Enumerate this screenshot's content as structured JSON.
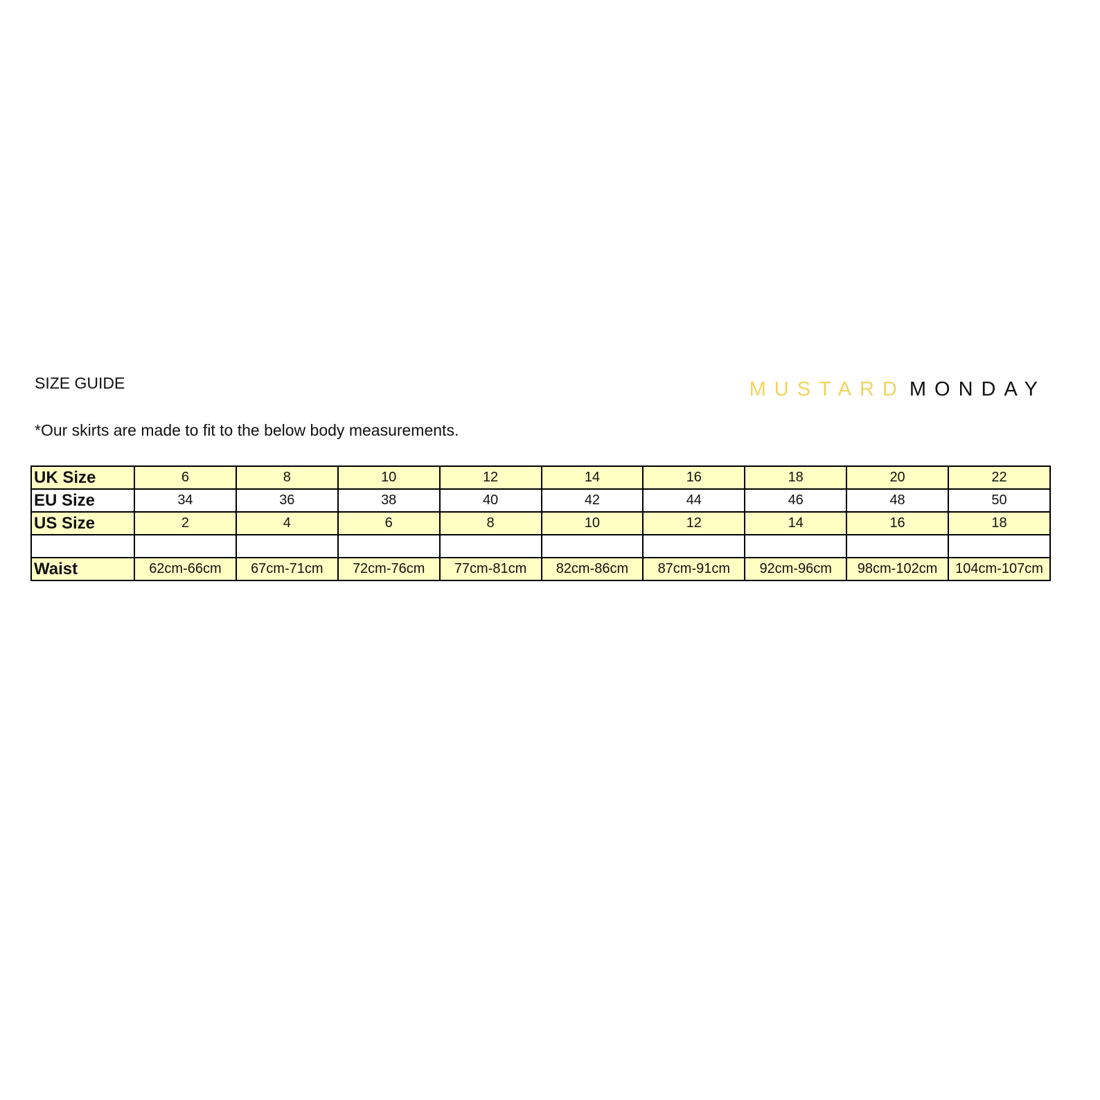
{
  "header": {
    "title": "SIZE GUIDE",
    "brand": {
      "first": "MUSTARD",
      "second": "MONDAY"
    },
    "note": "*Our skirts are made to fit to the below body measurements."
  },
  "table": {
    "rows": [
      {
        "label": "UK Size",
        "cells": [
          "6",
          "8",
          "10",
          "12",
          "14",
          "16",
          "18",
          "20",
          "22"
        ]
      },
      {
        "label": "EU Size",
        "cells": [
          "34",
          "36",
          "38",
          "40",
          "42",
          "44",
          "46",
          "48",
          "50"
        ]
      },
      {
        "label": "US Size",
        "cells": [
          "2",
          "4",
          "6",
          "8",
          "10",
          "12",
          "14",
          "16",
          "18"
        ]
      },
      {
        "label": "Waist",
        "cells": [
          "62cm-66cm",
          "67cm-71cm",
          "72cm-76cm",
          "77cm-81cm",
          "82cm-86cm",
          "87cm-91cm",
          "92cm-96cm",
          "98cm-102cm",
          "104cm-107cm"
        ]
      }
    ]
  }
}
